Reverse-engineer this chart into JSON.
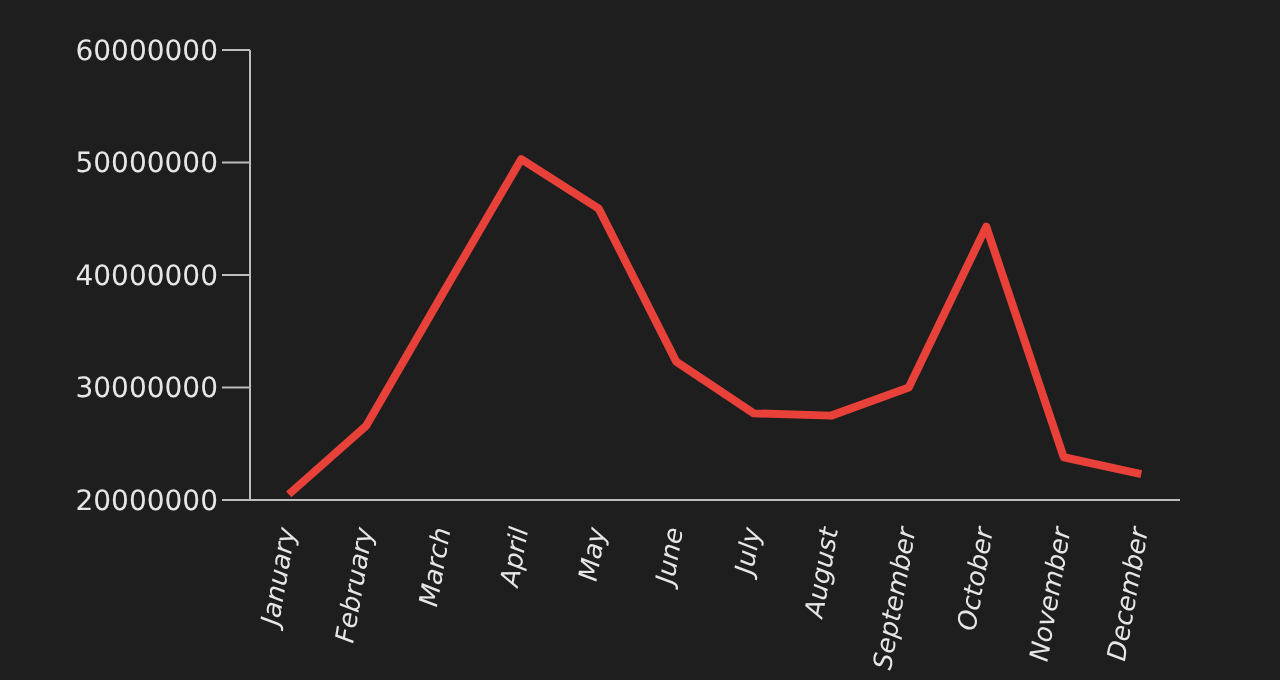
{
  "chart_data": {
    "type": "line",
    "categories": [
      "January",
      "February",
      "March",
      "April",
      "May",
      "June",
      "July",
      "August",
      "September",
      "October",
      "November",
      "December"
    ],
    "series": [
      {
        "color": "#e8413a",
        "values": [
          20500000,
          26600000,
          38500000,
          50300000,
          45900000,
          32300000,
          27700000,
          27500000,
          30000000,
          44300000,
          23800000,
          22300000
        ]
      }
    ],
    "ylim": [
      20000000,
      60000000
    ],
    "yticks": [
      20000000,
      30000000,
      40000000,
      50000000,
      60000000
    ],
    "grid": false,
    "legend": false,
    "marker": "none",
    "line_style": "solid"
  }
}
